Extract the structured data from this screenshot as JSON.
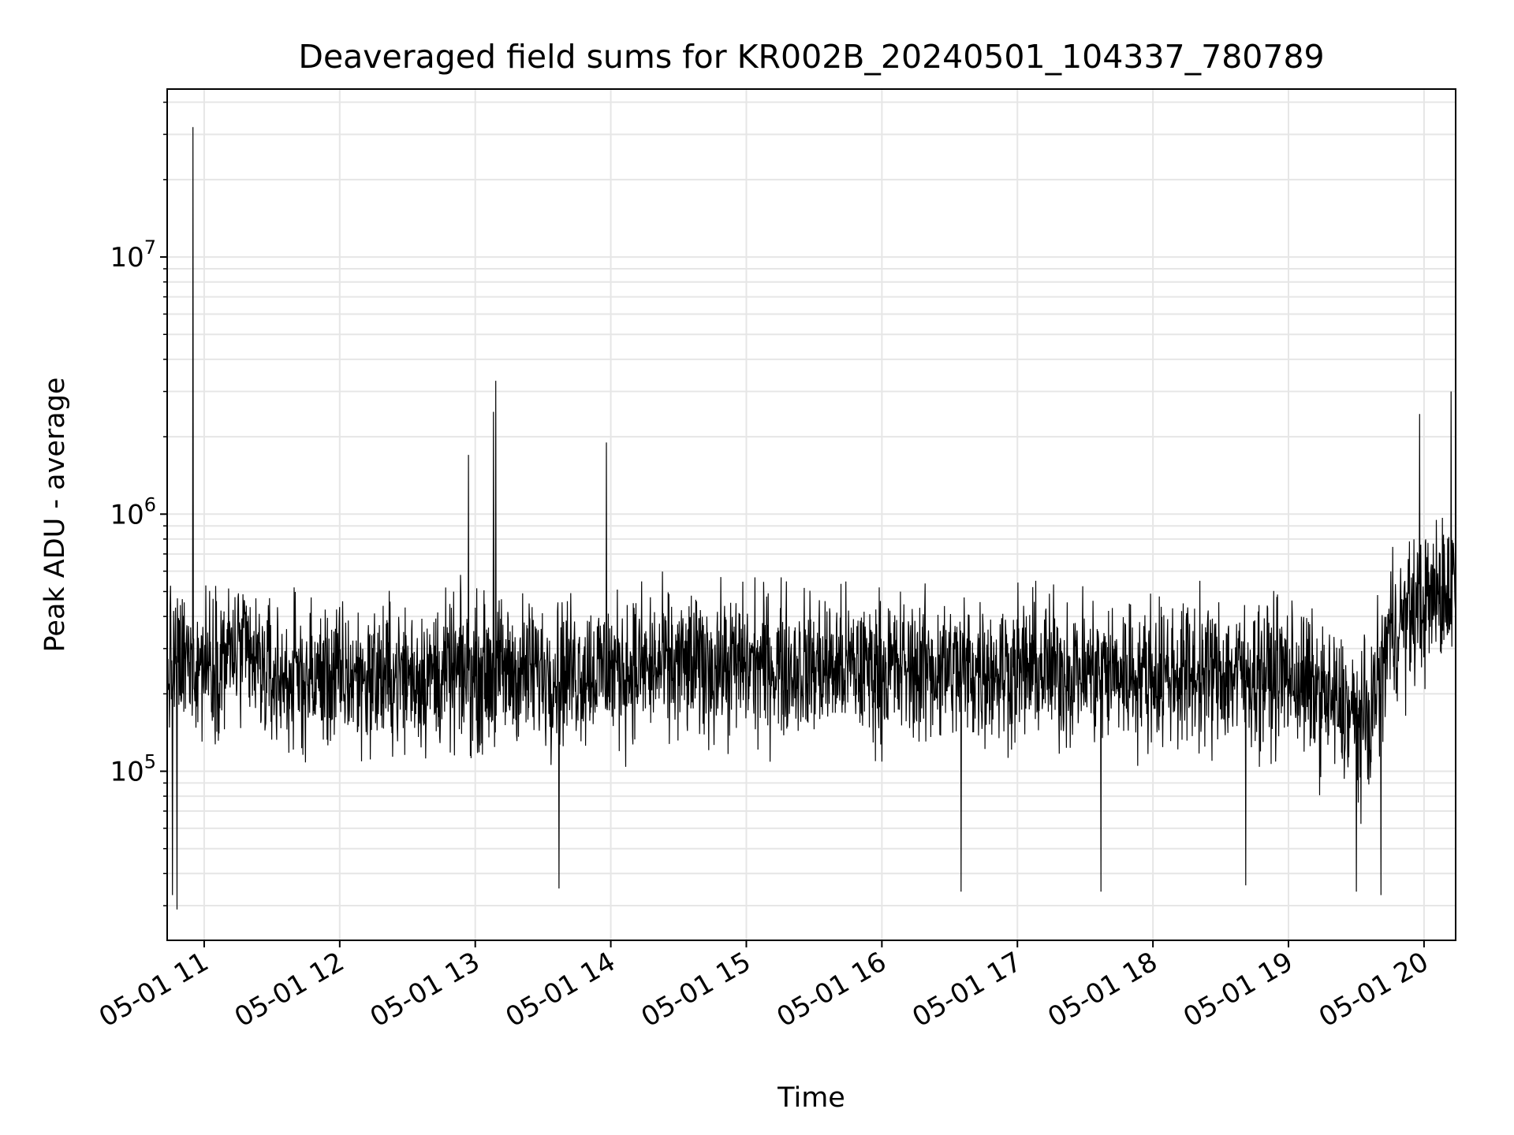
{
  "chart_data": {
    "type": "line",
    "title": "Deaveraged field sums for KR002B_20240501_104337_780789",
    "xlabel": "Time",
    "ylabel": "Peak ADU - average",
    "yscale": "log",
    "xlim": [
      "2024-05-01 10:43:37",
      "2024-05-01 20:14:00"
    ],
    "ylim": [
      22000,
      45000000
    ],
    "x_ticks": [
      "05-01 11",
      "05-01 12",
      "05-01 13",
      "05-01 14",
      "05-01 15",
      "05-01 16",
      "05-01 17",
      "05-01 18",
      "05-01 19",
      "05-01 20"
    ],
    "x_tick_times": [
      "2024-05-01 11:00",
      "2024-05-01 12:00",
      "2024-05-01 13:00",
      "2024-05-01 14:00",
      "2024-05-01 15:00",
      "2024-05-01 16:00",
      "2024-05-01 17:00",
      "2024-05-01 18:00",
      "2024-05-01 19:00",
      "2024-05-01 20:00"
    ],
    "y_ticks": [
      {
        "value": 100000,
        "base": "10",
        "exp": "5"
      },
      {
        "value": 1000000,
        "base": "10",
        "exp": "6"
      },
      {
        "value": 10000000,
        "base": "10",
        "exp": "7"
      }
    ],
    "grid": true,
    "line_color": "#000000",
    "grid_color": "#e6e6e6",
    "baseline_segments": [
      {
        "x": "2024-05-01 10:43:37",
        "y": 250000
      },
      {
        "x": "2024-05-01 11:15",
        "y": 290000
      },
      {
        "x": "2024-05-01 11:30",
        "y": 230000
      },
      {
        "x": "2024-05-01 12:00",
        "y": 230000
      },
      {
        "x": "2024-05-01 13:00",
        "y": 240000
      },
      {
        "x": "2024-05-01 14:00",
        "y": 250000
      },
      {
        "x": "2024-05-01 15:00",
        "y": 260000
      },
      {
        "x": "2024-05-01 16:00",
        "y": 250000
      },
      {
        "x": "2024-05-01 17:00",
        "y": 250000
      },
      {
        "x": "2024-05-01 18:00",
        "y": 240000
      },
      {
        "x": "2024-05-01 19:00",
        "y": 240000
      },
      {
        "x": "2024-05-01 19:35",
        "y": 150000
      },
      {
        "x": "2024-05-01 19:45",
        "y": 350000
      },
      {
        "x": "2024-05-01 20:14:00",
        "y": 550000
      }
    ],
    "peaks": [
      {
        "x": "2024-05-01 10:55",
        "y": 32000000
      },
      {
        "x": "2024-05-01 12:57",
        "y": 1700000
      },
      {
        "x": "2024-05-01 13:08",
        "y": 2500000
      },
      {
        "x": "2024-05-01 13:09",
        "y": 3300000
      },
      {
        "x": "2024-05-01 13:58",
        "y": 1900000
      },
      {
        "x": "2024-05-01 19:58",
        "y": 2450000
      },
      {
        "x": "2024-05-01 20:12",
        "y": 3000000
      }
    ],
    "dips": [
      {
        "x": "2024-05-01 10:48",
        "y": 29000
      },
      {
        "x": "2024-05-01 10:46",
        "y": 33000
      },
      {
        "x": "2024-05-01 13:37",
        "y": 35000
      },
      {
        "x": "2024-05-01 16:35",
        "y": 34000
      },
      {
        "x": "2024-05-01 17:37",
        "y": 34000
      },
      {
        "x": "2024-05-01 18:41",
        "y": 36000
      },
      {
        "x": "2024-05-01 19:30",
        "y": 34000
      },
      {
        "x": "2024-05-01 19:41",
        "y": 33000
      }
    ]
  }
}
